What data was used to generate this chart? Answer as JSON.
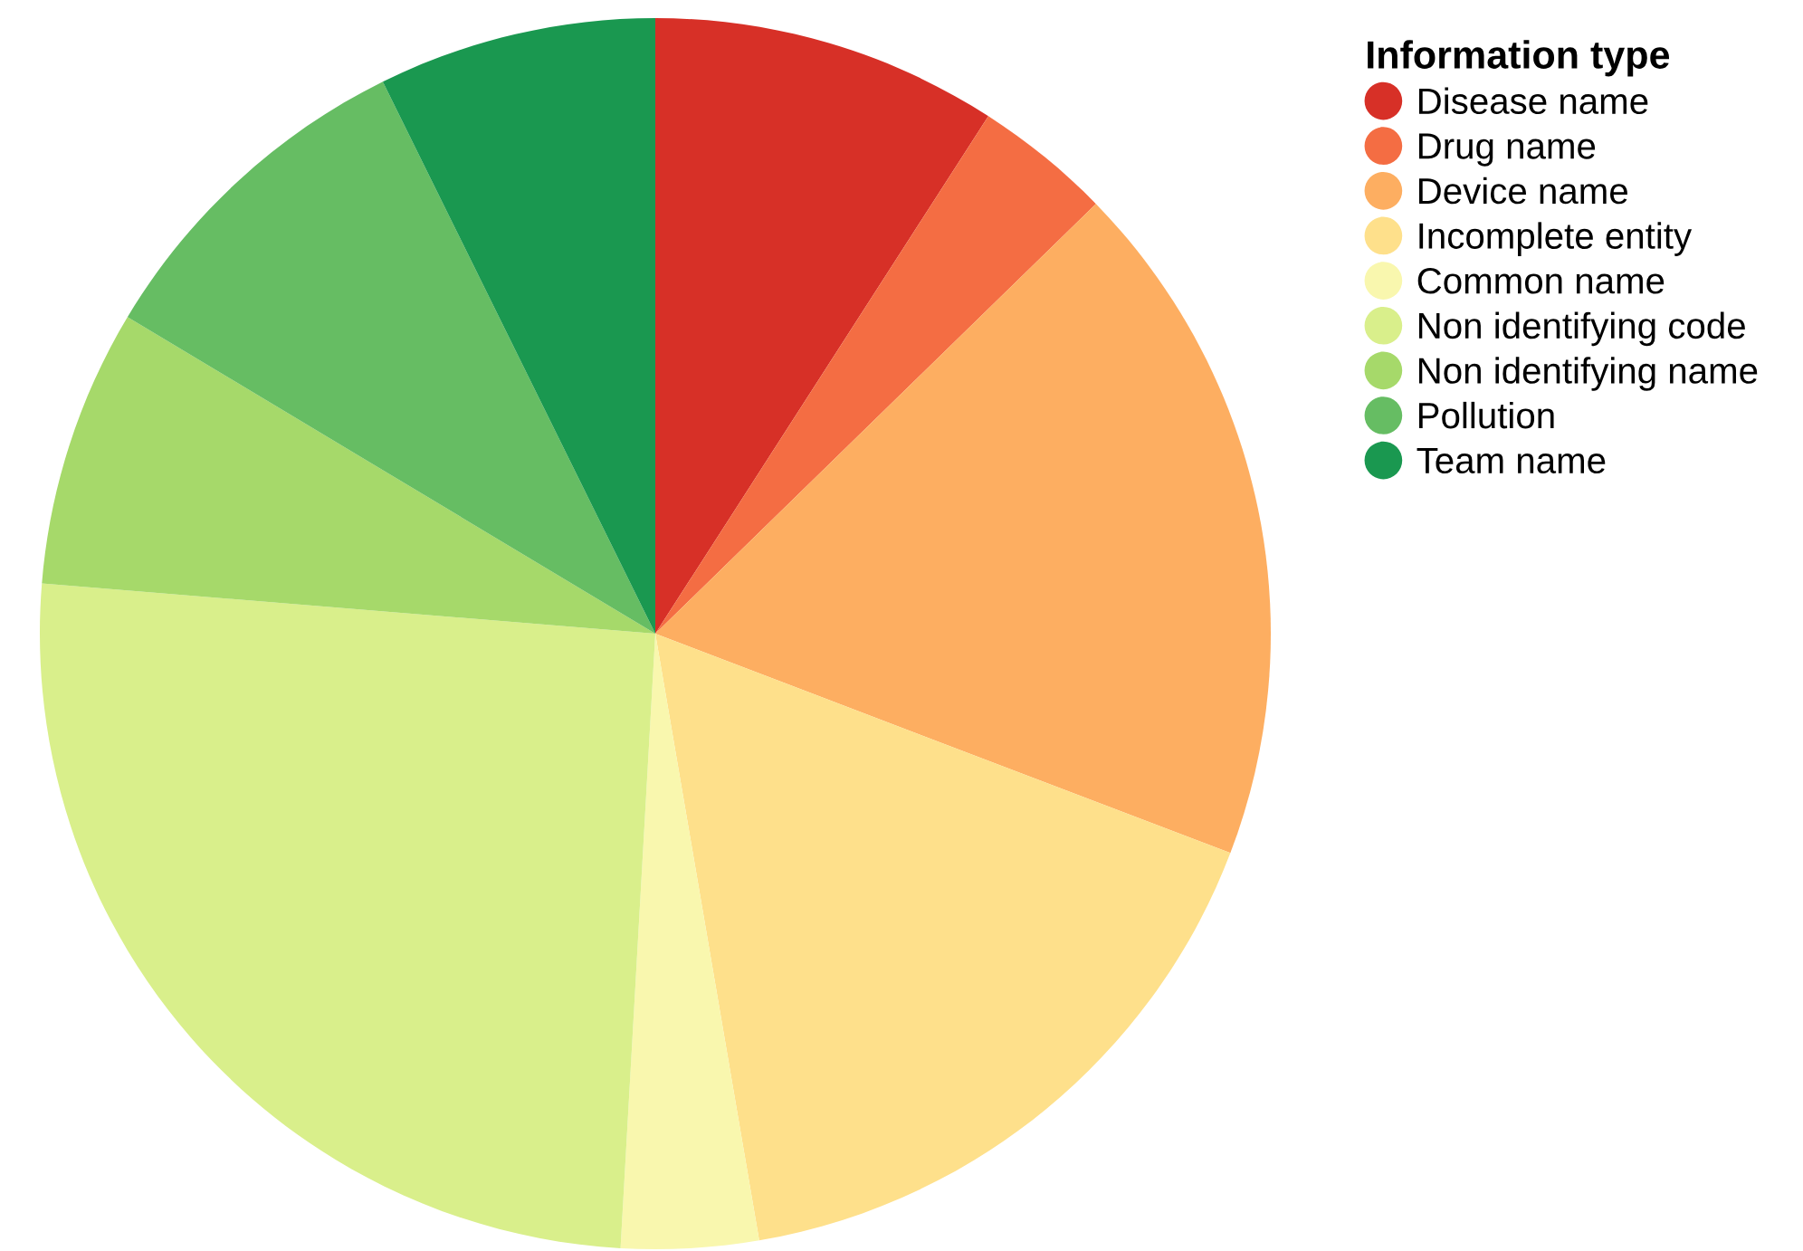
{
  "chart_data": {
    "type": "pie",
    "legend_title": "Information type",
    "legend": "top right",
    "categories": [
      "Disease name",
      "Drug name",
      "Device name",
      "Incomplete entity",
      "Common name",
      "Non identifying code",
      "Non identifying name",
      "Pollution",
      "Team name"
    ],
    "values": [
      9.1,
      3.6,
      18.1,
      16.5,
      3.6,
      25.4,
      7.3,
      9.1,
      7.3
    ],
    "colors": [
      "#d73027",
      "#f46d43",
      "#fdae61",
      "#fee08b",
      "#f9f7ae",
      "#d9ef8b",
      "#a6d96a",
      "#66bd63",
      "#1a9850"
    ]
  }
}
